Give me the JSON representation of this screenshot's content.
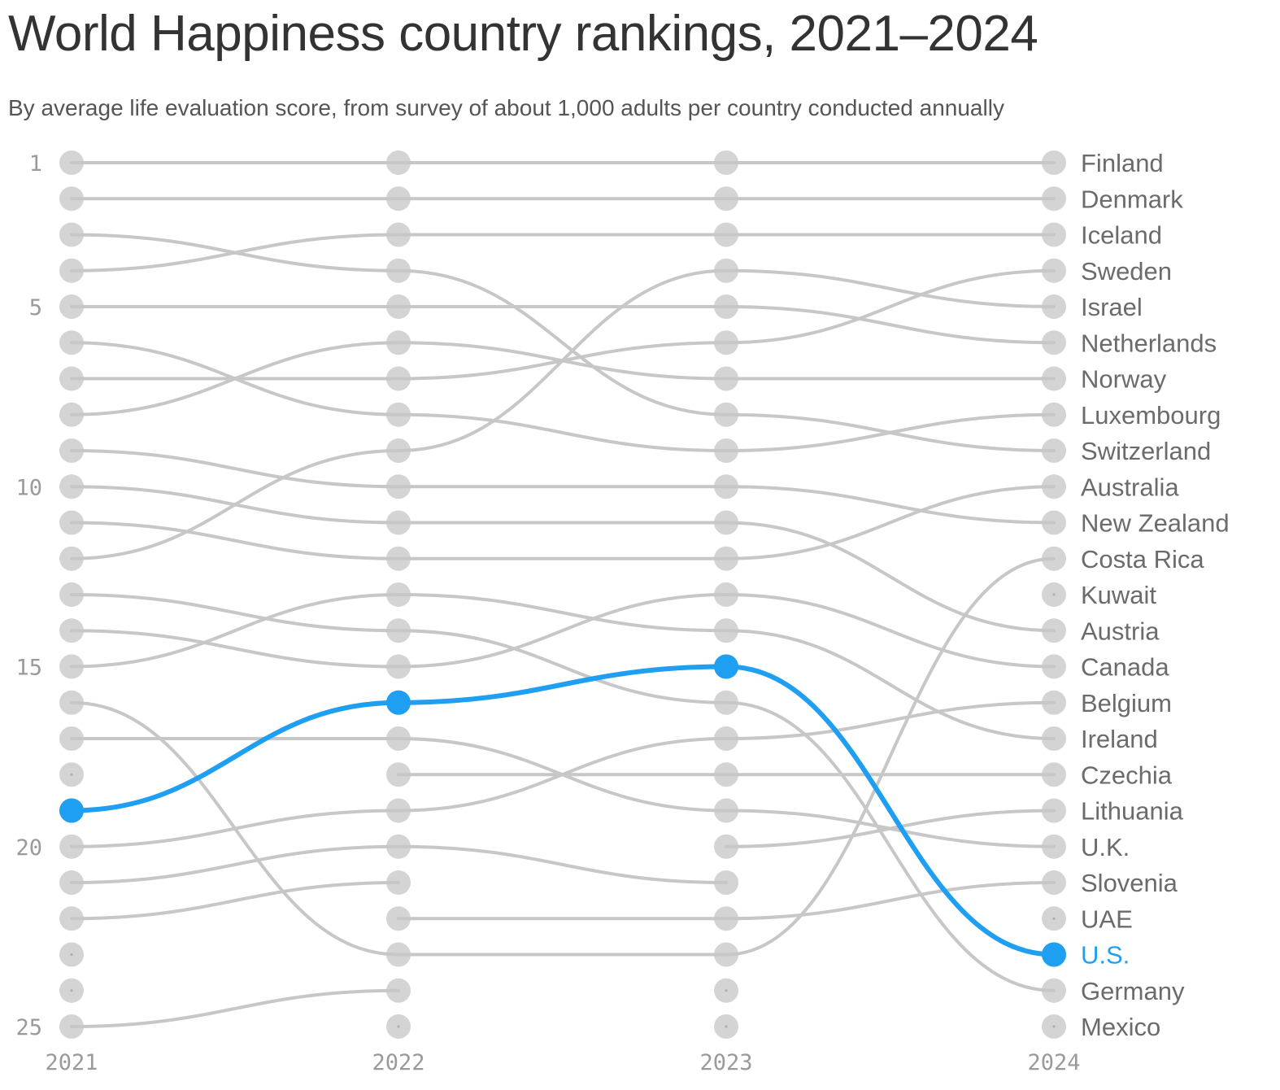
{
  "header": {
    "title": "World Happiness country rankings, 2021–2024",
    "subtitle": "By average life evaluation score, from survey of about 1,000 adults per country conducted annually"
  },
  "colors": {
    "line": "#c7c7c7",
    "dot": "#d4d4d4",
    "highlight": "#1e9ff2",
    "label": "#6b6b6b",
    "axis": "#9a9a9a"
  },
  "chart_data": {
    "type": "line",
    "title": "World Happiness country rankings, 2021–2024",
    "subtitle": "By average life evaluation score, from survey of about 1,000 adults per country conducted annually",
    "x": [
      "2021",
      "2022",
      "2023",
      "2024"
    ],
    "y_ticks": [
      "1",
      "5",
      "10",
      "15",
      "20",
      "25"
    ],
    "y_range": [
      1,
      25
    ],
    "highlight": "U.S.",
    "series": [
      {
        "name": "Finland",
        "ranks": [
          1,
          1,
          1,
          1
        ]
      },
      {
        "name": "Denmark",
        "ranks": [
          2,
          2,
          2,
          2
        ]
      },
      {
        "name": "Iceland",
        "ranks": [
          4,
          3,
          3,
          3
        ]
      },
      {
        "name": "Sweden",
        "ranks": [
          7,
          7,
          6,
          4
        ]
      },
      {
        "name": "Israel",
        "ranks": [
          12,
          9,
          4,
          5
        ]
      },
      {
        "name": "Netherlands",
        "ranks": [
          5,
          5,
          5,
          6
        ]
      },
      {
        "name": "Norway",
        "ranks": [
          8,
          6,
          7,
          7
        ]
      },
      {
        "name": "Luxembourg",
        "ranks": [
          6,
          8,
          9,
          8
        ]
      },
      {
        "name": "Switzerland",
        "ranks": [
          3,
          4,
          8,
          9
        ]
      },
      {
        "name": "Australia",
        "ranks": [
          11,
          12,
          12,
          10
        ]
      },
      {
        "name": "New Zealand",
        "ranks": [
          9,
          10,
          10,
          11
        ]
      },
      {
        "name": "Costa Rica",
        "ranks": [
          16,
          23,
          23,
          12
        ]
      },
      {
        "name": "Kuwait",
        "ranks": [
          null,
          null,
          null,
          13
        ]
      },
      {
        "name": "Austria",
        "ranks": [
          10,
          11,
          11,
          14
        ]
      },
      {
        "name": "Canada",
        "ranks": [
          14,
          15,
          13,
          15
        ]
      },
      {
        "name": "Belgium",
        "ranks": [
          20,
          19,
          17,
          16
        ]
      },
      {
        "name": "Ireland",
        "ranks": [
          15,
          13,
          14,
          17
        ]
      },
      {
        "name": "Czechia",
        "ranks": [
          null,
          18,
          18,
          18
        ]
      },
      {
        "name": "Lithuania",
        "ranks": [
          null,
          null,
          20,
          19
        ]
      },
      {
        "name": "U.K.",
        "ranks": [
          17,
          17,
          19,
          20
        ]
      },
      {
        "name": "Slovenia",
        "ranks": [
          null,
          22,
          22,
          21
        ]
      },
      {
        "name": "UAE",
        "ranks": [
          null,
          null,
          null,
          22
        ]
      },
      {
        "name": "U.S.",
        "ranks": [
          19,
          16,
          15,
          23
        ]
      },
      {
        "name": "Germany",
        "ranks": [
          13,
          14,
          16,
          24
        ]
      },
      {
        "name": "Mexico",
        "ranks": [
          null,
          null,
          null,
          25
        ]
      }
    ],
    "partial_series": [
      {
        "ranks": [
          21,
          20,
          21,
          null
        ]
      },
      {
        "ranks": [
          22,
          21,
          null,
          null
        ]
      },
      {
        "ranks": [
          25,
          24,
          null,
          null
        ]
      }
    ]
  }
}
